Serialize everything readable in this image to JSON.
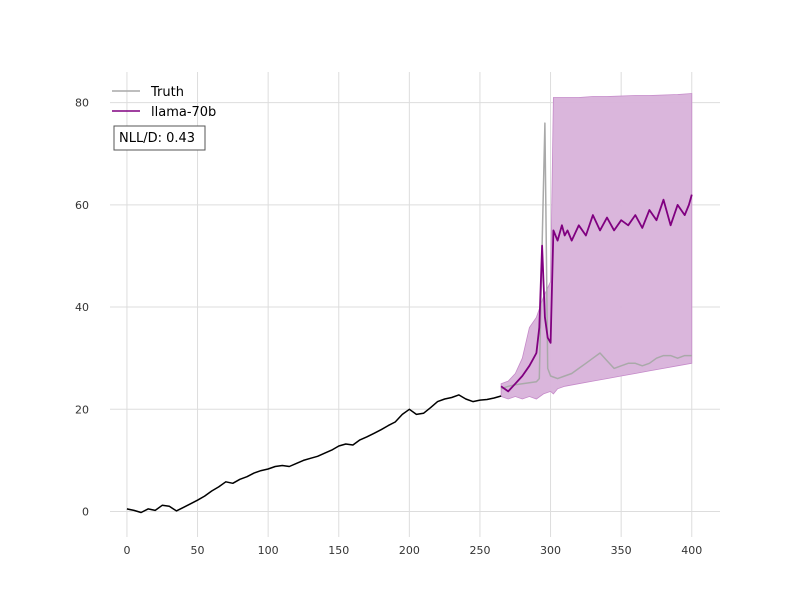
{
  "chart_data": {
    "type": "line",
    "title": "",
    "xlabel": "",
    "ylabel": "",
    "xlim": [
      -12,
      420
    ],
    "ylim": [
      -5,
      86
    ],
    "x_ticks": [
      0,
      50,
      100,
      150,
      200,
      250,
      300,
      350,
      400
    ],
    "y_ticks": [
      0,
      20,
      40,
      60,
      80
    ],
    "x_tick_labels": [
      "0",
      "50",
      "100",
      "150",
      "200",
      "250",
      "300",
      "350",
      "400"
    ],
    "y_tick_labels": [
      "0",
      "20",
      "40",
      "60",
      "80"
    ],
    "grid": true,
    "legend_position": "top-left",
    "annotation": "NLL/D: 0.43",
    "colors": {
      "history": "#000000",
      "truth": "#a9a9a9",
      "forecast": "#800080",
      "band": "#d8b2da",
      "grid": "#dddddd"
    },
    "history": {
      "x": [
        0,
        5,
        10,
        15,
        20,
        25,
        30,
        35,
        40,
        45,
        50,
        55,
        60,
        65,
        70,
        75,
        80,
        85,
        90,
        95,
        100,
        105,
        110,
        115,
        120,
        125,
        130,
        135,
        140,
        145,
        150,
        155,
        160,
        165,
        170,
        175,
        180,
        185,
        190,
        195,
        200,
        205,
        210,
        215,
        220,
        225,
        230,
        235,
        240,
        245,
        250,
        255,
        260,
        265
      ],
      "y": [
        0.5,
        0.2,
        -0.2,
        0.5,
        0.2,
        1.2,
        1.0,
        0.1,
        0.8,
        1.5,
        2.2,
        3.0,
        4.0,
        4.8,
        5.8,
        5.5,
        6.3,
        6.8,
        7.5,
        8.0,
        8.3,
        8.8,
        9.0,
        8.8,
        9.4,
        10.0,
        10.4,
        10.8,
        11.4,
        12.0,
        12.8,
        13.2,
        13.0,
        14.0,
        14.6,
        15.3,
        16.0,
        16.8,
        17.5,
        19.0,
        20.0,
        19.0,
        19.2,
        20.3,
        21.5,
        22.0,
        22.3,
        22.8,
        22.0,
        21.5,
        21.8,
        21.9,
        22.2,
        22.6
      ]
    },
    "series": [
      {
        "name": "Truth",
        "x": [
          265,
          270,
          275,
          280,
          285,
          290,
          292,
          294,
          296,
          298,
          300,
          305,
          310,
          315,
          320,
          325,
          330,
          335,
          340,
          345,
          350,
          355,
          360,
          365,
          370,
          375,
          380,
          385,
          390,
          395,
          400
        ],
        "y": [
          24.0,
          24.5,
          24.8,
          25.0,
          25.2,
          25.4,
          26.0,
          52.0,
          76.0,
          28.0,
          26.5,
          26.0,
          26.5,
          27.0,
          28.0,
          29.0,
          30.0,
          31.0,
          29.5,
          28.0,
          28.5,
          29.0,
          29.0,
          28.5,
          29.0,
          30.0,
          30.5,
          30.5,
          30.0,
          30.5,
          30.5
        ]
      },
      {
        "name": "llama-70b",
        "x": [
          265,
          270,
          275,
          280,
          285,
          288,
          290,
          292,
          294,
          296,
          298,
          300,
          302,
          305,
          308,
          310,
          312,
          315,
          320,
          325,
          330,
          335,
          340,
          345,
          350,
          355,
          360,
          365,
          370,
          375,
          380,
          385,
          390,
          395,
          398,
          400
        ],
        "y": [
          24.5,
          23.5,
          25.0,
          26.5,
          28.5,
          30.0,
          31.0,
          36.0,
          52.0,
          38.0,
          34.0,
          33.0,
          55.0,
          53.0,
          56.0,
          54.0,
          55.0,
          53.0,
          56.0,
          54.0,
          58.0,
          55.0,
          57.5,
          55.0,
          57.0,
          56.0,
          58.0,
          55.5,
          59.0,
          57.0,
          61.0,
          56.0,
          60.0,
          58.0,
          60.0,
          62.0
        ]
      }
    ],
    "band": {
      "x": [
        265,
        270,
        275,
        280,
        285,
        290,
        295,
        300,
        302,
        305,
        310,
        320,
        330,
        340,
        350,
        360,
        370,
        380,
        390,
        400
      ],
      "lower": [
        22.5,
        22.0,
        22.5,
        22.0,
        22.5,
        22.0,
        23.0,
        23.5,
        23.0,
        24.0,
        24.5,
        25.0,
        25.5,
        26.0,
        26.5,
        27.0,
        27.5,
        28.0,
        28.5,
        29.0
      ],
      "upper": [
        25.0,
        25.5,
        27.0,
        30.0,
        36.0,
        38.0,
        42.0,
        45.0,
        81.0,
        81.0,
        81.0,
        81.0,
        81.2,
        81.2,
        81.3,
        81.4,
        81.4,
        81.5,
        81.6,
        81.8
      ]
    }
  }
}
